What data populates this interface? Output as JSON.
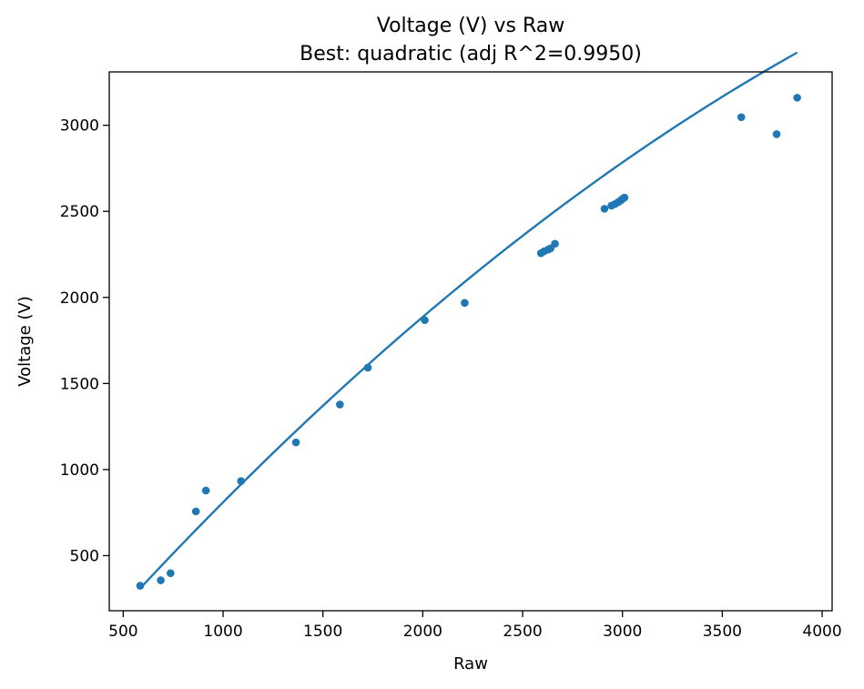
{
  "chart_data": {
    "type": "scatter",
    "title": "Voltage (V) vs Raw",
    "subtitle": "Best: quadratic (adj R^2=0.9950)",
    "xlabel": "Raw",
    "ylabel": "Voltage (V)",
    "xlim": [
      430,
      4050
    ],
    "ylim": [
      180,
      3310
    ],
    "xticks": [
      500,
      1000,
      1500,
      2000,
      2500,
      3000,
      3500,
      4000
    ],
    "yticks": [
      500,
      1000,
      1500,
      2000,
      2500,
      3000
    ],
    "grid": false,
    "color": "#1f77b4",
    "points": [
      {
        "x": 585,
        "y": 325
      },
      {
        "x": 688,
        "y": 357
      },
      {
        "x": 737,
        "y": 398
      },
      {
        "x": 864,
        "y": 757
      },
      {
        "x": 914,
        "y": 878
      },
      {
        "x": 1090,
        "y": 933
      },
      {
        "x": 1365,
        "y": 1158
      },
      {
        "x": 1585,
        "y": 1378
      },
      {
        "x": 1725,
        "y": 1592
      },
      {
        "x": 2010,
        "y": 1868
      },
      {
        "x": 2210,
        "y": 1968
      },
      {
        "x": 2592,
        "y": 2257
      },
      {
        "x": 2608,
        "y": 2268
      },
      {
        "x": 2628,
        "y": 2278
      },
      {
        "x": 2640,
        "y": 2285
      },
      {
        "x": 2662,
        "y": 2312
      },
      {
        "x": 2910,
        "y": 2515
      },
      {
        "x": 2945,
        "y": 2533
      },
      {
        "x": 2962,
        "y": 2542
      },
      {
        "x": 2978,
        "y": 2553
      },
      {
        "x": 2990,
        "y": 2562
      },
      {
        "x": 3000,
        "y": 2572
      },
      {
        "x": 3010,
        "y": 2580
      },
      {
        "x": 3595,
        "y": 3047
      },
      {
        "x": 3772,
        "y": 2948
      },
      {
        "x": 3875,
        "y": 3160
      }
    ],
    "fit": {
      "model": "quadratic",
      "x_range": [
        585,
        3875
      ],
      "coefficients": {
        "a": -8.96e-05,
        "b": 1.3455,
        "c": -446
      }
    }
  }
}
